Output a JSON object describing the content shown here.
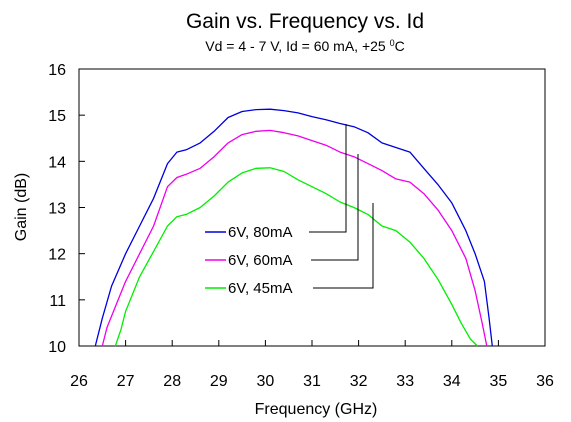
{
  "chart_data": {
    "type": "line",
    "title": "Gain vs. Frequency vs. Id",
    "subtitle": "Vd = 4 - 7 V, Id = 60 mA, +25 ",
    "subtitle_sup": "0",
    "subtitle_end": "C",
    "xlabel": "Frequency (GHz)",
    "ylabel": "Gain (dB)",
    "xlim": [
      26,
      36
    ],
    "ylim": [
      10,
      16
    ],
    "xticks": [
      26,
      27,
      28,
      29,
      30,
      31,
      32,
      33,
      34,
      35,
      36
    ],
    "yticks": [
      10,
      11,
      12,
      13,
      14,
      15,
      16
    ],
    "grid": false,
    "legend_position": "center",
    "series": [
      {
        "name": "6V, 80mA",
        "color": "#0000dd",
        "x": [
          26.35,
          26.5,
          26.7,
          27.0,
          27.3,
          27.6,
          27.9,
          28.1,
          28.3,
          28.6,
          28.9,
          29.2,
          29.5,
          29.8,
          30.1,
          30.4,
          30.7,
          31.0,
          31.3,
          31.6,
          31.9,
          32.2,
          32.5,
          32.8,
          33.1,
          33.4,
          33.7,
          34.0,
          34.3,
          34.5,
          34.7,
          34.8,
          34.87
        ],
        "values": [
          10.0,
          10.6,
          11.3,
          12.0,
          12.6,
          13.2,
          13.95,
          14.2,
          14.25,
          14.4,
          14.65,
          14.95,
          15.08,
          15.12,
          15.13,
          15.1,
          15.05,
          14.97,
          14.9,
          14.82,
          14.75,
          14.62,
          14.4,
          14.3,
          14.2,
          13.85,
          13.5,
          13.1,
          12.5,
          12.0,
          11.4,
          10.6,
          10.0
        ]
      },
      {
        "name": "6V, 60mA",
        "color": "#ee00ee",
        "x": [
          26.5,
          26.6,
          26.8,
          27.0,
          27.3,
          27.6,
          27.9,
          28.1,
          28.3,
          28.6,
          28.9,
          29.2,
          29.5,
          29.8,
          30.1,
          30.4,
          30.7,
          31.0,
          31.3,
          31.6,
          31.9,
          32.2,
          32.5,
          32.8,
          33.1,
          33.4,
          33.7,
          34.0,
          34.3,
          34.5,
          34.65,
          34.75
        ],
        "values": [
          10.0,
          10.4,
          10.9,
          11.4,
          12.0,
          12.6,
          13.45,
          13.65,
          13.72,
          13.85,
          14.1,
          14.4,
          14.58,
          14.65,
          14.67,
          14.62,
          14.55,
          14.45,
          14.35,
          14.2,
          14.1,
          13.95,
          13.8,
          13.62,
          13.55,
          13.3,
          12.95,
          12.5,
          11.9,
          11.2,
          10.5,
          10.0
        ]
      },
      {
        "name": "6V, 45mA",
        "color": "#00ee00",
        "x": [
          26.78,
          26.9,
          27.0,
          27.3,
          27.6,
          27.9,
          28.1,
          28.3,
          28.6,
          28.9,
          29.2,
          29.5,
          29.8,
          30.1,
          30.4,
          30.7,
          31.0,
          31.3,
          31.6,
          31.9,
          32.2,
          32.5,
          32.8,
          33.1,
          33.4,
          33.7,
          34.0,
          34.2,
          34.4,
          34.55
        ],
        "values": [
          10.0,
          10.35,
          10.75,
          11.5,
          12.05,
          12.6,
          12.8,
          12.85,
          13.0,
          13.25,
          13.55,
          13.75,
          13.85,
          13.86,
          13.78,
          13.6,
          13.45,
          13.3,
          13.12,
          13.0,
          12.85,
          12.6,
          12.5,
          12.25,
          11.9,
          11.45,
          10.9,
          10.5,
          10.15,
          10.0
        ]
      }
    ]
  }
}
